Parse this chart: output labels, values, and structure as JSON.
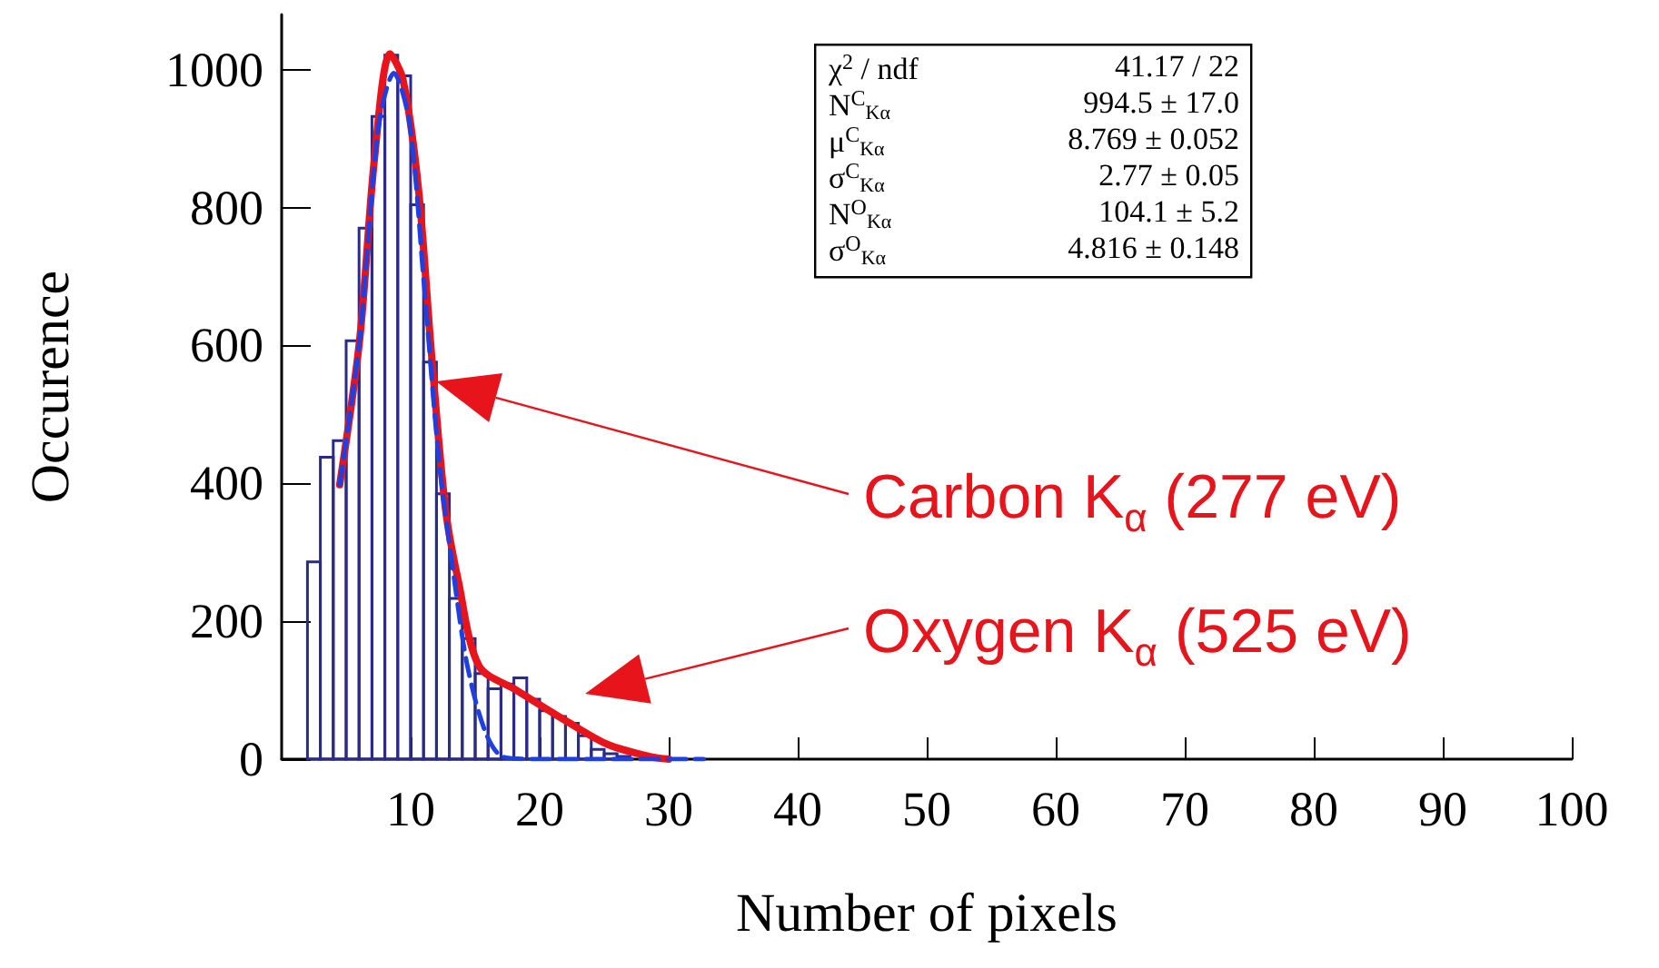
{
  "chart_data": {
    "type": "histogram",
    "xlabel": "Number of pixels",
    "ylabel": "Occurence",
    "bins": [
      2,
      3,
      4,
      5,
      6,
      7,
      8,
      9,
      10,
      11,
      12,
      13,
      14,
      15,
      16,
      17,
      18,
      19,
      20,
      21,
      22,
      23,
      24,
      25,
      26,
      27
    ],
    "values": [
      286,
      438,
      462,
      607,
      770,
      932,
      1021,
      991,
      804,
      576,
      385,
      233,
      175,
      124,
      102,
      109,
      118,
      87,
      70,
      62,
      52,
      34,
      14,
      8,
      4
    ],
    "color": "#2a2a8a",
    "series": [
      {
        "type": "line",
        "color": "#e8141b",
        "line_style": "solid",
        "x": [
          4.5,
          6.05,
          7.2,
          8.4,
          9.4,
          10.6,
          11.6,
          12.7,
          13.7,
          15.3,
          18.2,
          22,
          25.3,
          28.7,
          30
        ],
        "values": [
          398,
          609,
          872,
          1023,
          986,
          828,
          591,
          363,
          258,
          135,
          100,
          56,
          21,
          3,
          0
        ]
      },
      {
        "type": "line",
        "color": "#1f3fe0",
        "line_style": "dashed",
        "x": [
          4.5,
          6.05,
          7.5,
          8.7,
          9.9,
          11,
          12.2,
          13.4,
          14.4,
          15.8,
          17.2,
          20,
          25,
          32.7
        ],
        "values": [
          398,
          609,
          916,
          995,
          924,
          697,
          433,
          258,
          135,
          39,
          3,
          0,
          0,
          0
        ]
      }
    ],
    "xlim": [
      0,
      100
    ],
    "xticks": [
      10,
      20,
      30,
      40,
      50,
      60,
      70,
      80,
      90,
      100
    ],
    "ylim": [
      0,
      1080
    ],
    "yticks": [
      0,
      200,
      400,
      600,
      800,
      1000
    ],
    "grid": false,
    "marker": "none",
    "annotations": [
      "χ$^{2}$ / ndf",
      "41.17 / 22",
      "N$^{C}$$_{Kα}$",
      "994.5 ± 17.0",
      "μ$^{C}$$_{Kα}$",
      "8.769 ± 0.052",
      "σ$^{C}$$_{Kα}$",
      "2.77 ± 0.05",
      "N$^{O}$$_{Kα}$",
      "104.1 ± 5.2",
      "σ$^{O}$$_{Kα}$",
      "4.816 ± 0.148",
      "Carbon K$_{α}$ (277 eV)",
      "Oxygen K$_{α}$ (525 eV)"
    ]
  }
}
